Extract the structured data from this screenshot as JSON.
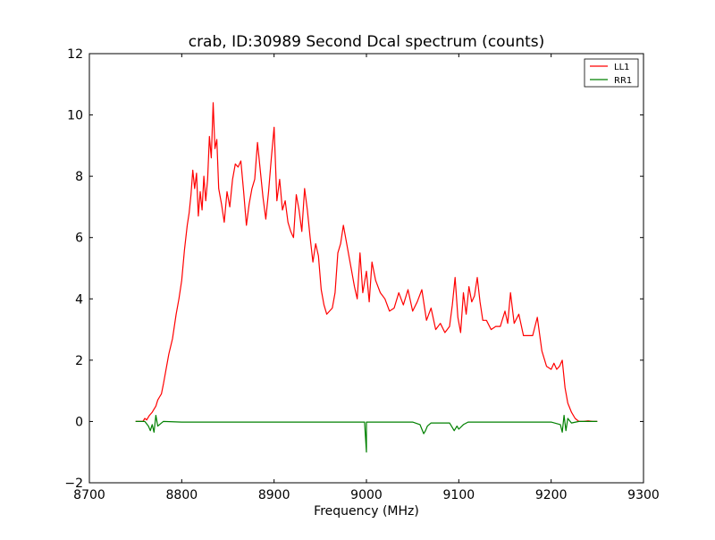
{
  "chart_data": {
    "type": "line",
    "title": "crab, ID:30989 Second Dcal spectrum (counts)",
    "xlabel": "Frequency (MHz)",
    "ylabel": "",
    "xlim": [
      8700,
      9300
    ],
    "ylim": [
      -2,
      12
    ],
    "xticks": [
      8700,
      8800,
      8900,
      9000,
      9100,
      9200,
      9300
    ],
    "yticks": [
      -2,
      0,
      2,
      4,
      6,
      8,
      10,
      12
    ],
    "xtick_labels": [
      "8700",
      "8800",
      "8900",
      "9000",
      "9100",
      "9200",
      "9300"
    ],
    "ytick_labels": [
      "−2",
      "0",
      "2",
      "4",
      "6",
      "8",
      "10",
      "12"
    ],
    "grid": false,
    "legend_position": "top-right",
    "series": [
      {
        "name": "LL1",
        "color": "#ff0000",
        "x": [
          8750,
          8758,
          8760,
          8762,
          8765,
          8768,
          8770,
          8772,
          8774,
          8776,
          8778,
          8780,
          8783,
          8786,
          8790,
          8794,
          8797,
          8800,
          8803,
          8806,
          8808,
          8810,
          8812,
          8814,
          8816,
          8818,
          8820,
          8822,
          8824,
          8826,
          8828,
          8830,
          8832,
          8834,
          8836,
          8838,
          8840,
          8843,
          8846,
          8849,
          8852,
          8855,
          8858,
          8861,
          8864,
          8867,
          8870,
          8873,
          8876,
          8879,
          8882,
          8885,
          8888,
          8891,
          8894,
          8897,
          8900,
          8903,
          8906,
          8909,
          8912,
          8915,
          8918,
          8921,
          8924,
          8927,
          8930,
          8933,
          8936,
          8939,
          8942,
          8945,
          8948,
          8951,
          8954,
          8957,
          8960,
          8963,
          8966,
          8969,
          8972,
          8975,
          8978,
          8981,
          8984,
          8987,
          8990,
          8993,
          8996,
          9000,
          9003,
          9006,
          9010,
          9015,
          9020,
          9025,
          9030,
          9035,
          9040,
          9045,
          9050,
          9055,
          9060,
          9065,
          9070,
          9075,
          9080,
          9085,
          9090,
          9093,
          9096,
          9099,
          9102,
          9105,
          9108,
          9111,
          9114,
          9117,
          9120,
          9123,
          9126,
          9130,
          9135,
          9140,
          9145,
          9150,
          9153,
          9156,
          9160,
          9165,
          9170,
          9175,
          9180,
          9185,
          9190,
          9195,
          9200,
          9203,
          9206,
          9209,
          9212,
          9215,
          9218,
          9222,
          9226,
          9230,
          9235,
          9240,
          9245,
          9250
        ],
        "y": [
          0.0,
          0.0,
          0.1,
          0.05,
          0.2,
          0.3,
          0.4,
          0.5,
          0.7,
          0.8,
          0.9,
          1.2,
          1.7,
          2.2,
          2.7,
          3.5,
          4.0,
          4.6,
          5.6,
          6.4,
          6.8,
          7.4,
          8.2,
          7.6,
          8.1,
          6.7,
          7.5,
          6.9,
          8.0,
          7.2,
          7.9,
          9.3,
          8.6,
          10.4,
          8.9,
          9.2,
          7.6,
          7.1,
          6.5,
          7.5,
          7.0,
          7.9,
          8.4,
          8.3,
          8.5,
          7.5,
          6.4,
          7.1,
          7.6,
          7.9,
          9.1,
          8.2,
          7.3,
          6.6,
          7.5,
          8.6,
          9.6,
          7.2,
          7.9,
          6.9,
          7.2,
          6.5,
          6.2,
          6.0,
          7.4,
          6.9,
          6.2,
          7.6,
          6.9,
          6.0,
          5.2,
          5.8,
          5.4,
          4.3,
          3.8,
          3.5,
          3.6,
          3.7,
          4.2,
          5.5,
          5.8,
          6.4,
          5.9,
          5.4,
          4.9,
          4.4,
          4.0,
          5.5,
          4.2,
          4.9,
          3.9,
          5.2,
          4.6,
          4.2,
          4.0,
          3.6,
          3.7,
          4.2,
          3.8,
          4.3,
          3.6,
          3.9,
          4.3,
          3.3,
          3.7,
          3.0,
          3.2,
          2.9,
          3.1,
          3.8,
          4.7,
          3.4,
          2.9,
          4.2,
          3.5,
          4.4,
          3.9,
          4.1,
          4.7,
          3.9,
          3.3,
          3.3,
          3.0,
          3.1,
          3.1,
          3.6,
          3.2,
          4.2,
          3.2,
          3.5,
          2.8,
          2.8,
          2.8,
          3.4,
          2.3,
          1.8,
          1.7,
          1.9,
          1.7,
          1.8,
          2.0,
          1.1,
          0.6,
          0.3,
          0.1,
          0.0,
          0.0,
          0.02,
          0.0,
          0.0
        ]
      },
      {
        "name": "RR1",
        "color": "#008000",
        "x": [
          8750,
          8760,
          8764,
          8766,
          8768,
          8770,
          8772,
          8774,
          8780,
          8800,
          8850,
          8900,
          8950,
          8998,
          9000,
          9000,
          9002,
          9050,
          9058,
          9062,
          9064,
          9066,
          9070,
          9090,
          9095,
          9098,
          9100,
          9105,
          9110,
          9150,
          9200,
          9210,
          9212,
          9214,
          9216,
          9218,
          9222,
          9230,
          9240,
          9250
        ],
        "y": [
          0.0,
          0.0,
          -0.15,
          -0.3,
          -0.1,
          -0.35,
          0.2,
          -0.15,
          0.0,
          -0.02,
          -0.02,
          -0.02,
          -0.02,
          -0.02,
          -1.0,
          -0.02,
          -0.02,
          -0.02,
          -0.1,
          -0.4,
          -0.3,
          -0.15,
          -0.05,
          -0.05,
          -0.3,
          -0.15,
          -0.25,
          -0.1,
          -0.02,
          -0.02,
          -0.02,
          -0.1,
          -0.35,
          0.2,
          -0.3,
          0.1,
          -0.05,
          0.0,
          0.0,
          0.0
        ]
      }
    ]
  }
}
